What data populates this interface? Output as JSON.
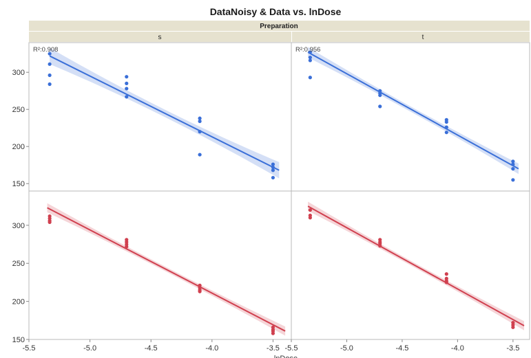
{
  "title": "DataNoisy & Data vs. lnDose",
  "group_header": "Preparation",
  "column_labels": [
    "s",
    "t"
  ],
  "x_axis_label": "lnDose",
  "r_squared_label": "R²:",
  "colors": {
    "blue_series": "#3a6fd8",
    "red_series": "#d0404f",
    "header_fill": "#e6e2cf",
    "frame": "#b8b8b8"
  },
  "chart_data": [
    {
      "type": "scatter",
      "panel": "top-s",
      "column": "s",
      "variable": "DataNoisy",
      "r_squared": "0.908",
      "fit": "linear with confidence band",
      "xlim": [
        -5.5,
        -3.35
      ],
      "ylim": [
        140,
        340
      ],
      "xticks": [
        "-5.5",
        "-5.0",
        "-4.5",
        "-4.0",
        "-3.5"
      ],
      "yticks": [
        "150",
        "200",
        "250",
        "300"
      ],
      "points": [
        [
          -5.33,
          325
        ],
        [
          -5.33,
          311
        ],
        [
          -5.33,
          296
        ],
        [
          -5.33,
          284
        ],
        [
          -4.7,
          294
        ],
        [
          -4.7,
          285
        ],
        [
          -4.7,
          278
        ],
        [
          -4.7,
          267
        ],
        [
          -4.1,
          238
        ],
        [
          -4.1,
          234
        ],
        [
          -4.1,
          220
        ],
        [
          -4.1,
          189
        ],
        [
          -3.5,
          176
        ],
        [
          -3.5,
          172
        ],
        [
          -3.5,
          168
        ],
        [
          -3.5,
          158
        ]
      ],
      "fit_line": [
        [
          -5.33,
          322
        ],
        [
          -3.45,
          168
        ]
      ],
      "band_halfwidth_ends": 11,
      "band_halfwidth_mid": 5
    },
    {
      "type": "scatter",
      "panel": "top-t",
      "column": "t",
      "variable": "DataNoisy",
      "r_squared": "0.956",
      "fit": "linear with confidence band",
      "xlim": [
        -5.5,
        -3.35
      ],
      "ylim": [
        140,
        340
      ],
      "xticks": [
        "-5.5",
        "-5.0",
        "-4.5",
        "-4.0",
        "-3.5"
      ],
      "yticks": [
        "150",
        "200",
        "250",
        "300"
      ],
      "points": [
        [
          -5.33,
          327
        ],
        [
          -5.33,
          320
        ],
        [
          -5.33,
          316
        ],
        [
          -5.33,
          293
        ],
        [
          -4.7,
          275
        ],
        [
          -4.7,
          272
        ],
        [
          -4.7,
          269
        ],
        [
          -4.7,
          254
        ],
        [
          -4.1,
          236
        ],
        [
          -4.1,
          233
        ],
        [
          -4.1,
          226
        ],
        [
          -4.1,
          219
        ],
        [
          -3.5,
          180
        ],
        [
          -3.5,
          176
        ],
        [
          -3.5,
          170
        ],
        [
          -3.5,
          155
        ]
      ],
      "fit_line": [
        [
          -5.35,
          327
        ],
        [
          -3.45,
          170
        ]
      ],
      "band_halfwidth_ends": 7,
      "band_halfwidth_mid": 3.5
    },
    {
      "type": "scatter",
      "panel": "bottom-s",
      "column": "s",
      "variable": "Data",
      "fit": "linear with confidence band",
      "xlim": [
        -5.5,
        -3.35
      ],
      "ylim": [
        150,
        345
      ],
      "xticks": [
        "-5.5",
        "-5.0",
        "-4.5",
        "-4.0",
        "-3.5"
      ],
      "yticks": [
        "150",
        "200",
        "250",
        "300"
      ],
      "points": [
        [
          -5.33,
          312
        ],
        [
          -5.33,
          309
        ],
        [
          -5.33,
          306
        ],
        [
          -5.33,
          304
        ],
        [
          -4.7,
          281
        ],
        [
          -4.7,
          278
        ],
        [
          -4.7,
          275
        ],
        [
          -4.7,
          272
        ],
        [
          -4.1,
          221
        ],
        [
          -4.1,
          218
        ],
        [
          -4.1,
          215
        ],
        [
          -4.1,
          213
        ],
        [
          -3.5,
          166
        ],
        [
          -3.5,
          163
        ],
        [
          -3.5,
          161
        ],
        [
          -3.5,
          158
        ]
      ],
      "fit_line": [
        [
          -5.35,
          323
        ],
        [
          -3.4,
          161
        ]
      ],
      "band_halfwidth_ends": 6,
      "band_halfwidth_mid": 3
    },
    {
      "type": "scatter",
      "panel": "bottom-t",
      "column": "t",
      "variable": "Data",
      "fit": "linear with confidence band",
      "xlim": [
        -5.5,
        -3.35
      ],
      "ylim": [
        150,
        345
      ],
      "xticks": [
        "-5.5",
        "-5.0",
        "-4.5",
        "-4.0",
        "-3.5"
      ],
      "yticks": [
        "150",
        "200",
        "250",
        "300"
      ],
      "points": [
        [
          -5.33,
          320
        ],
        [
          -5.33,
          313
        ],
        [
          -5.33,
          310
        ],
        [
          -4.7,
          281
        ],
        [
          -4.7,
          278
        ],
        [
          -4.7,
          276
        ],
        [
          -4.7,
          273
        ],
        [
          -4.1,
          236
        ],
        [
          -4.1,
          230
        ],
        [
          -4.1,
          227
        ],
        [
          -4.1,
          225
        ],
        [
          -3.5,
          172
        ],
        [
          -3.5,
          169
        ],
        [
          -3.5,
          166
        ]
      ],
      "fit_line": [
        [
          -5.35,
          325
        ],
        [
          -3.4,
          168
        ]
      ],
      "band_halfwidth_ends": 6,
      "band_halfwidth_mid": 3
    }
  ]
}
